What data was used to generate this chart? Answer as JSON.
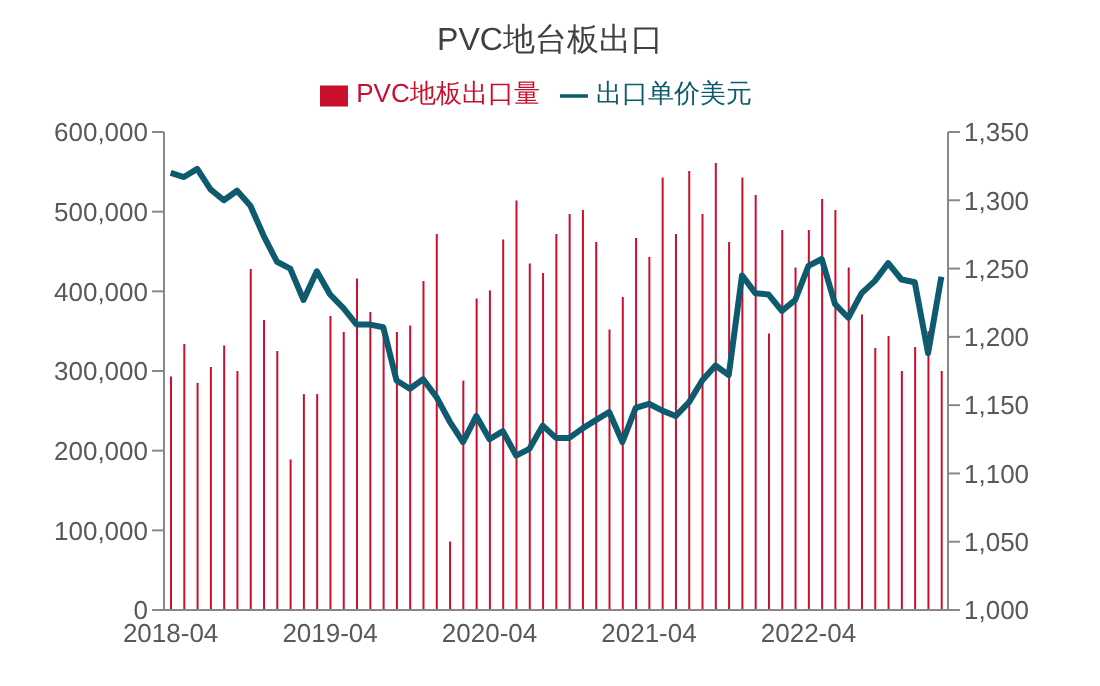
{
  "chart_data": {
    "type": "bar",
    "title": "PVC地台板出口",
    "categories": [
      "2018-04",
      null,
      null,
      null,
      null,
      null,
      null,
      null,
      null,
      null,
      null,
      null,
      "2019-04",
      null,
      null,
      null,
      null,
      null,
      null,
      null,
      null,
      null,
      null,
      null,
      "2020-04",
      null,
      null,
      null,
      null,
      null,
      null,
      null,
      null,
      null,
      null,
      null,
      "2021-04",
      null,
      null,
      null,
      null,
      null,
      null,
      null,
      null,
      null,
      null,
      null,
      "2022-04",
      null,
      null,
      null,
      null,
      null,
      null,
      null,
      null,
      null,
      null
    ],
    "series": [
      {
        "name": "PVC地板出口量",
        "color": "#c8102e",
        "values": [
          293000,
          334000,
          285000,
          305000,
          332000,
          300000,
          428000,
          364000,
          325000,
          189000,
          271000,
          271000,
          369000,
          349000,
          416000,
          374000,
          349000,
          349000,
          357000,
          413000,
          472000,
          86000,
          288000,
          391000,
          401000,
          465000,
          514000,
          435000,
          423000,
          472000,
          497000,
          502000,
          462000,
          352000,
          393000,
          467000,
          443000,
          543000,
          472000,
          551000,
          497000,
          561000,
          462000,
          543000,
          521000,
          347000,
          477000,
          430000,
          477000,
          516000,
          502000,
          430000,
          371000,
          329000,
          344000,
          300000,
          330000,
          350000,
          300000
        ]
      },
      {
        "name": "出口单价美元",
        "type": "line",
        "axis": "y2",
        "color": "#0e5a6e",
        "values": [
          1320,
          1317,
          1323,
          1308,
          1300,
          1307,
          1296,
          1274,
          1255,
          1250,
          1227,
          1248,
          1231,
          1221,
          1209,
          1209,
          1207,
          1168,
          1162,
          1169,
          1156,
          1138,
          1123,
          1142,
          1125,
          1131,
          1113,
          1118,
          1135,
          1126,
          1126,
          1133,
          1139,
          1145,
          1123,
          1148,
          1151,
          1146,
          1142,
          1152,
          1168,
          1179,
          1172,
          1245,
          1232,
          1231,
          1219,
          1227,
          1252,
          1257,
          1224,
          1214,
          1232,
          1241,
          1254,
          1242,
          1240,
          1188,
          1244
        ]
      }
    ],
    "ylim": [
      0,
      600000
    ],
    "yticks": [
      {
        "value": 0,
        "label": "0"
      },
      {
        "value": 100000,
        "label": "100,000"
      },
      {
        "value": 200000,
        "label": "200,000"
      },
      {
        "value": 300000,
        "label": "300,000"
      },
      {
        "value": 400000,
        "label": "400,000"
      },
      {
        "value": 500000,
        "label": "500,000"
      },
      {
        "value": 600000,
        "label": "600,000"
      }
    ],
    "y2lim": [
      1000,
      1350
    ],
    "y2ticks": [
      {
        "value": 1000,
        "label": "1,000"
      },
      {
        "value": 1050,
        "label": "1,050"
      },
      {
        "value": 1100,
        "label": "1,100"
      },
      {
        "value": 1150,
        "label": "1,150"
      },
      {
        "value": 1200,
        "label": "1,200"
      },
      {
        "value": 1250,
        "label": "1,250"
      },
      {
        "value": 1300,
        "label": "1,300"
      },
      {
        "value": 1350,
        "label": "1,350"
      }
    ],
    "legend": "top",
    "grid": false
  }
}
